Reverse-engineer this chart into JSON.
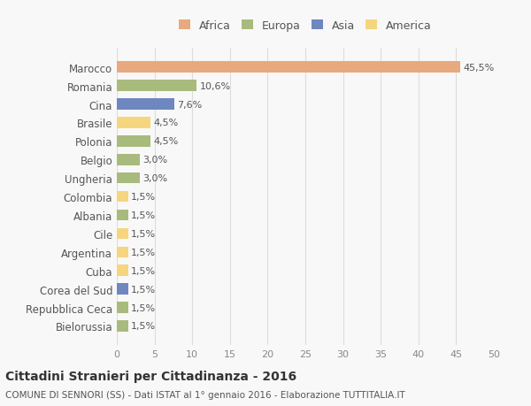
{
  "categories": [
    "Marocco",
    "Romania",
    "Cina",
    "Brasile",
    "Polonia",
    "Belgio",
    "Ungheria",
    "Colombia",
    "Albania",
    "Cile",
    "Argentina",
    "Cuba",
    "Corea del Sud",
    "Repubblica Ceca",
    "Bielorussia"
  ],
  "values": [
    45.5,
    10.6,
    7.6,
    4.5,
    4.5,
    3.0,
    3.0,
    1.5,
    1.5,
    1.5,
    1.5,
    1.5,
    1.5,
    1.5,
    1.5
  ],
  "labels": [
    "45,5%",
    "10,6%",
    "7,6%",
    "4,5%",
    "4,5%",
    "3,0%",
    "3,0%",
    "1,5%",
    "1,5%",
    "1,5%",
    "1,5%",
    "1,5%",
    "1,5%",
    "1,5%",
    "1,5%"
  ],
  "colors": [
    "#e8a97e",
    "#a8bb7d",
    "#6e87c0",
    "#f5d57e",
    "#a8bb7d",
    "#a8bb7d",
    "#a8bb7d",
    "#f5d57e",
    "#a8bb7d",
    "#f5d57e",
    "#f5d57e",
    "#f5d57e",
    "#6e87c0",
    "#a8bb7d",
    "#a8bb7d"
  ],
  "legend_items": [
    {
      "label": "Africa",
      "color": "#e8a97e"
    },
    {
      "label": "Europa",
      "color": "#a8bb7d"
    },
    {
      "label": "Asia",
      "color": "#6e87c0"
    },
    {
      "label": "America",
      "color": "#f5d57e"
    }
  ],
  "xlim": [
    0,
    50
  ],
  "xticks": [
    0,
    5,
    10,
    15,
    20,
    25,
    30,
    35,
    40,
    45,
    50
  ],
  "title": "Cittadini Stranieri per Cittadinanza - 2016",
  "subtitle": "COMUNE DI SENNORI (SS) - Dati ISTAT al 1° gennaio 2016 - Elaborazione TUTTITALIA.IT",
  "background_color": "#f8f8f8",
  "grid_color": "#dddddd",
  "bar_height": 0.6
}
